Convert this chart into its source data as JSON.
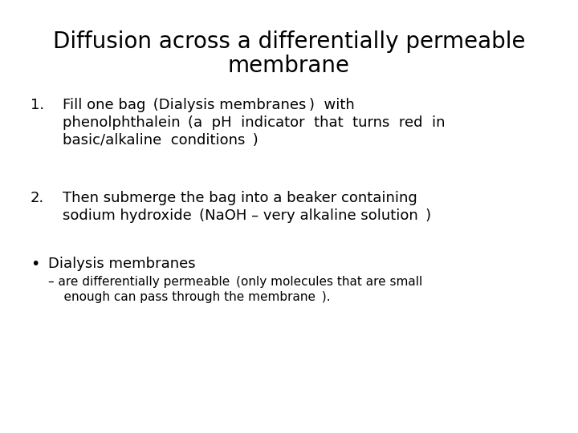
{
  "title_line1": "Diffusion across a differentially permeable",
  "title_line2": "membrane",
  "bg_color": "#ffffff",
  "text_color": "#000000",
  "title_fontsize": 20,
  "body_fontsize": 13,
  "sub_fontsize": 11,
  "num1": "1.",
  "num2": "2.",
  "item1_line1": "Fill one bag  (Dialysis membranes )  with",
  "item1_line2": "phenolphthalein  (a  pH  indicator  that  turns  red  in",
  "item1_line3": "basic/alkaline  conditions  )",
  "item2_line1": "Then submerge the bag into a beaker containing",
  "item2_line2": "sodium hydroxide  (NaOH – very alkaline solution  )",
  "bullet": "•",
  "bullet_main": "Dialysis membranes",
  "sub_line1": "– are differentially permeable  (only molecules that are small",
  "sub_line2": "    enough can pass through the membrane  )."
}
